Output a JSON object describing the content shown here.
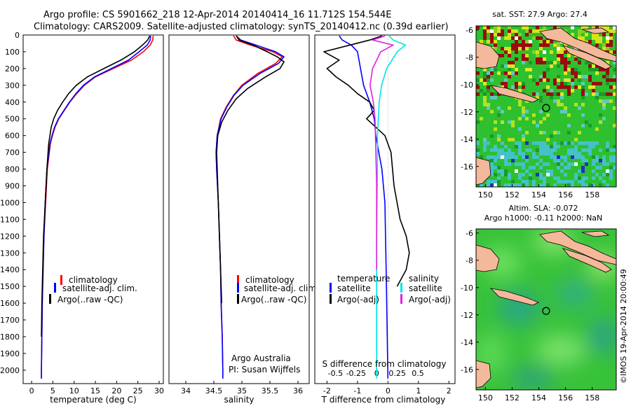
{
  "header": {
    "line1": "Argo profile: CS 5901662_218 12-Apr-2014 20140414_16 11.712S 154.544E",
    "line2": "Climatology: CARS2009. Satellite-adjusted climatology: synTS_20140412.nc (0.39d earlier)"
  },
  "colors": {
    "climatology": "#ff0000",
    "satellite": "#0000ff",
    "argo": "#000000",
    "salinity_satellite": "#00e5e5",
    "salinity_argo": "#e020e0",
    "land": "#f4b89a",
    "sea": "#2ec02e"
  },
  "chart_data": [
    {
      "type": "line",
      "name": "temperature",
      "xlabel": "temperature (deg C)",
      "ylabel": "",
      "xlim": [
        -2,
        31
      ],
      "ylim": [
        2080,
        0
      ],
      "xticks": [
        "0",
        "5",
        "10",
        "15",
        "20",
        "25",
        "30"
      ],
      "xtick_values": [
        0,
        5,
        10,
        15,
        20,
        25,
        30
      ],
      "yticks": [
        "0",
        "100",
        "200",
        "300",
        "400",
        "500",
        "600",
        "700",
        "800",
        "900",
        "1000",
        "1100",
        "1200",
        "1300",
        "1400",
        "1500",
        "1600",
        "1700",
        "1800",
        "1900",
        "2000"
      ],
      "ytick_values": [
        0,
        100,
        200,
        300,
        400,
        500,
        600,
        700,
        800,
        900,
        1000,
        1100,
        1200,
        1300,
        1400,
        1500,
        1600,
        1700,
        1800,
        1900,
        2000
      ],
      "legend": [
        "climatology",
        "satellite-adj. clim.",
        "Argo(..raw -QC)"
      ],
      "annotations": [],
      "series": [
        {
          "name": "climatology",
          "color": "#ff0000",
          "x": [
            28.6,
            28.5,
            27.9,
            26.3,
            23.5,
            19.2,
            15.0,
            12.4,
            10.6,
            9.0,
            7.7,
            6.4,
            5.5,
            4.9,
            4.4,
            3.7,
            3.3,
            2.9,
            2.7,
            2.5,
            2.4,
            2.3,
            2.3
          ],
          "y": [
            5,
            30,
            60,
            100,
            150,
            200,
            250,
            300,
            350,
            400,
            450,
            500,
            550,
            600,
            650,
            800,
            1000,
            1200,
            1400,
            1600,
            1800,
            2000,
            2050
          ]
        },
        {
          "name": "satellite-adj. clim.",
          "color": "#0000ff",
          "x": [
            28.0,
            27.9,
            27.2,
            25.3,
            22.8,
            18.8,
            14.8,
            12.2,
            10.4,
            8.9,
            7.6,
            6.3,
            5.4,
            4.8,
            4.3,
            3.6,
            3.2,
            2.9,
            2.7,
            2.5,
            2.4,
            2.3,
            2.3
          ],
          "y": [
            5,
            30,
            60,
            100,
            150,
            200,
            250,
            300,
            350,
            400,
            450,
            500,
            550,
            600,
            650,
            800,
            1000,
            1200,
            1400,
            1600,
            1800,
            2000,
            2050
          ]
        },
        {
          "name": "Argo(..raw -QC)",
          "color": "#000000",
          "x": [
            27.8,
            27.3,
            26.1,
            24.2,
            21.0,
            17.0,
            13.1,
            10.5,
            8.7,
            7.3,
            6.1,
            5.2,
            4.6,
            4.0,
            3.6,
            3.2,
            2.8,
            2.6,
            2.4,
            2.3
          ],
          "y": [
            5,
            30,
            60,
            100,
            150,
            200,
            250,
            300,
            350,
            400,
            450,
            500,
            550,
            650,
            800,
            1000,
            1200,
            1400,
            1600,
            1800
          ]
        }
      ]
    },
    {
      "type": "line",
      "name": "salinity",
      "xlabel": "salinity",
      "ylabel": "",
      "xlim": [
        33.7,
        36.2
      ],
      "ylim": [
        2080,
        0
      ],
      "xticks": [
        "34",
        "34.5",
        "35",
        "35.5",
        "36"
      ],
      "xtick_values": [
        34,
        34.5,
        35,
        35.5,
        36
      ],
      "legend": [
        "climatology",
        "satellite-adj. clim.",
        "Argo(..raw -QC)"
      ],
      "annotations": [
        "Argo Australia",
        "PI: Susan Wijffels"
      ],
      "series": [
        {
          "name": "climatology",
          "color": "#ff0000",
          "x": [
            34.85,
            34.9,
            35.15,
            35.55,
            35.72,
            35.6,
            35.28,
            35.0,
            34.85,
            34.72,
            34.62,
            34.56,
            34.54,
            34.55,
            34.58,
            34.6,
            34.62,
            34.63,
            34.65,
            34.66,
            34.66
          ],
          "y": [
            5,
            30,
            60,
            100,
            130,
            170,
            230,
            300,
            360,
            430,
            500,
            600,
            700,
            800,
            1000,
            1200,
            1400,
            1600,
            1800,
            2000,
            2050
          ]
        },
        {
          "name": "satellite-adj. clim.",
          "color": "#0000ff",
          "x": [
            34.9,
            34.98,
            35.25,
            35.6,
            35.75,
            35.65,
            35.32,
            35.02,
            34.86,
            34.73,
            34.63,
            34.56,
            34.54,
            34.55,
            34.58,
            34.6,
            34.62,
            34.63,
            34.65,
            34.66,
            34.66
          ],
          "y": [
            5,
            30,
            60,
            100,
            130,
            170,
            230,
            300,
            360,
            430,
            500,
            600,
            700,
            800,
            1000,
            1200,
            1400,
            1600,
            1800,
            2000,
            2050
          ]
        },
        {
          "name": "Argo(..raw -QC)",
          "color": "#000000",
          "x": [
            34.9,
            34.95,
            35.2,
            35.45,
            35.63,
            35.75,
            35.68,
            35.42,
            35.1,
            34.9,
            34.75,
            34.64,
            34.57,
            34.55,
            34.56,
            34.58,
            34.6,
            34.62,
            34.64
          ],
          "y": [
            5,
            30,
            60,
            100,
            130,
            160,
            200,
            250,
            320,
            380,
            450,
            520,
            600,
            700,
            800,
            1000,
            1200,
            1400,
            1600
          ]
        }
      ]
    },
    {
      "type": "line",
      "name": "difference",
      "xlabel": "T difference from climatology",
      "xlabel_top": "S difference from climatology",
      "xlim": [
        -2.4,
        2.2
      ],
      "ylim": [
        2080,
        0
      ],
      "xticks": [
        "-2",
        "-1",
        "0",
        "1",
        "2"
      ],
      "xtick_values": [
        -2,
        -1,
        0,
        1,
        2
      ],
      "sticks": [
        "-0.5",
        "-0.25",
        "0",
        "0.25",
        "0.5"
      ],
      "stick_values": [
        -0.5,
        -0.25,
        0,
        0.25,
        0.5
      ],
      "legend_headers": [
        "temperature",
        "salinity"
      ],
      "legend": [
        "satellite",
        "Argo(-adj)",
        "satellite",
        "Argo(-adj)"
      ],
      "series": [
        {
          "name": "satellite",
          "color": "#0000ff",
          "axis": "T",
          "x": [
            -1.6,
            -1.5,
            -1.2,
            -1.0,
            -0.9,
            -0.8,
            -0.6,
            -0.45,
            -0.4,
            -0.3,
            -0.2,
            -0.1,
            -0.05,
            0.0
          ],
          "y": [
            5,
            30,
            60,
            100,
            200,
            300,
            400,
            500,
            600,
            700,
            800,
            1000,
            1500,
            2050
          ]
        },
        {
          "name": "Argo(-adj)",
          "color": "#000000",
          "axis": "T",
          "x": [
            -0.2,
            -0.6,
            -2.1,
            -1.6,
            -2.0,
            -1.7,
            -1.3,
            -1.0,
            -0.6,
            -0.45,
            -0.7,
            -0.4,
            -0.1,
            0.1,
            0.2,
            0.4,
            0.6,
            0.7,
            0.6,
            0.3
          ],
          "y": [
            5,
            30,
            100,
            150,
            200,
            250,
            300,
            350,
            400,
            450,
            500,
            550,
            600,
            700,
            900,
            1100,
            1200,
            1300,
            1400,
            1500
          ]
        },
        {
          "name": "satellite",
          "color": "#00e5e5",
          "axis": "S",
          "x": [
            0.15,
            0.2,
            0.35,
            0.25,
            0.12,
            0.06,
            0.03,
            0.02,
            0.01,
            0.01,
            0.0,
            0.0
          ],
          "y": [
            5,
            30,
            60,
            100,
            200,
            300,
            400,
            500,
            600,
            800,
            1200,
            2050
          ]
        },
        {
          "name": "Argo(-adj)",
          "color": "#e020e0",
          "axis": "S",
          "x": [
            0.1,
            -0.05,
            0.2,
            0.05,
            -0.05,
            -0.08,
            -0.04,
            -0.02,
            -0.01,
            0.0,
            0.0,
            0.0
          ],
          "y": [
            5,
            30,
            60,
            100,
            200,
            300,
            400,
            500,
            700,
            900,
            1200,
            1400
          ]
        }
      ]
    },
    {
      "type": "heatmap",
      "name": "sst-map",
      "title": "sat. SST: 27.9 Argo: 27.4",
      "xticks": [
        "150",
        "152",
        "154",
        "156",
        "158"
      ],
      "xtick_values": [
        150,
        152,
        154,
        156,
        158
      ],
      "yticks": [
        "-6",
        "-8",
        "-10",
        "-12",
        "-14",
        "-16"
      ],
      "ytick_values": [
        -6,
        -8,
        -10,
        -12,
        -14,
        -16
      ],
      "xlim": [
        149.3,
        159.8
      ],
      "ylim": [
        -17.5,
        -5.7
      ],
      "float_position": {
        "lon": 154.544,
        "lat": -11.712
      }
    },
    {
      "type": "heatmap",
      "name": "sla-map",
      "title": "Altim. SLA: -0.072",
      "subtitle": "Argo h1000: -0.11 h2000: NaN",
      "xticks": [
        "150",
        "152",
        "154",
        "156",
        "158"
      ],
      "xtick_values": [
        150,
        152,
        154,
        156,
        158
      ],
      "yticks": [
        "-6",
        "-8",
        "-10",
        "-12",
        "-14",
        "-16"
      ],
      "ytick_values": [
        -6,
        -8,
        -10,
        -12,
        -14,
        -16
      ],
      "xlim": [
        149.3,
        159.8
      ],
      "ylim": [
        -17.5,
        -5.7
      ],
      "float_position": {
        "lon": 154.544,
        "lat": -11.712
      }
    }
  ],
  "credit": "©IMOS 19-Apr-2014 20:00:49"
}
